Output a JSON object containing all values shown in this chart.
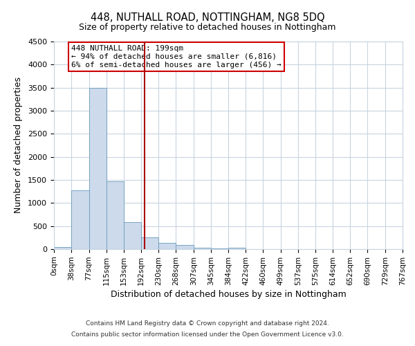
{
  "title_line1": "448, NUTHALL ROAD, NOTTINGHAM, NG8 5DQ",
  "title_line2": "Size of property relative to detached houses in Nottingham",
  "xlabel": "Distribution of detached houses by size in Nottingham",
  "ylabel": "Number of detached properties",
  "bar_color": "#ccdaeb",
  "bar_edge_color": "#6699bb",
  "bin_edges": [
    0,
    38,
    77,
    115,
    153,
    192,
    230,
    268,
    307,
    345,
    384,
    422,
    460,
    499,
    537,
    575,
    614,
    652,
    690,
    729,
    767
  ],
  "bin_counts": [
    50,
    1280,
    3500,
    1470,
    580,
    250,
    140,
    90,
    30,
    20,
    25,
    5,
    0,
    0,
    0,
    0,
    0,
    0,
    0,
    0
  ],
  "property_size": 199,
  "vline_color": "#aa0000",
  "annotation_box_color": "#cc0000",
  "annotation_line1": "448 NUTHALL ROAD: 199sqm",
  "annotation_line2": "← 94% of detached houses are smaller (6,816)",
  "annotation_line3": "6% of semi-detached houses are larger (456) →",
  "ylim": [
    0,
    4500
  ],
  "yticks": [
    0,
    500,
    1000,
    1500,
    2000,
    2500,
    3000,
    3500,
    4000,
    4500
  ],
  "tick_labels": [
    "0sqm",
    "38sqm",
    "77sqm",
    "115sqm",
    "153sqm",
    "192sqm",
    "230sqm",
    "268sqm",
    "307sqm",
    "345sqm",
    "384sqm",
    "422sqm",
    "460sqm",
    "499sqm",
    "537sqm",
    "575sqm",
    "614sqm",
    "652sqm",
    "690sqm",
    "729sqm",
    "767sqm"
  ],
  "footer_line1": "Contains HM Land Registry data © Crown copyright and database right 2024.",
  "footer_line2": "Contains public sector information licensed under the Open Government Licence v3.0.",
  "background_color": "#ffffff",
  "grid_color": "#c8d4e0"
}
